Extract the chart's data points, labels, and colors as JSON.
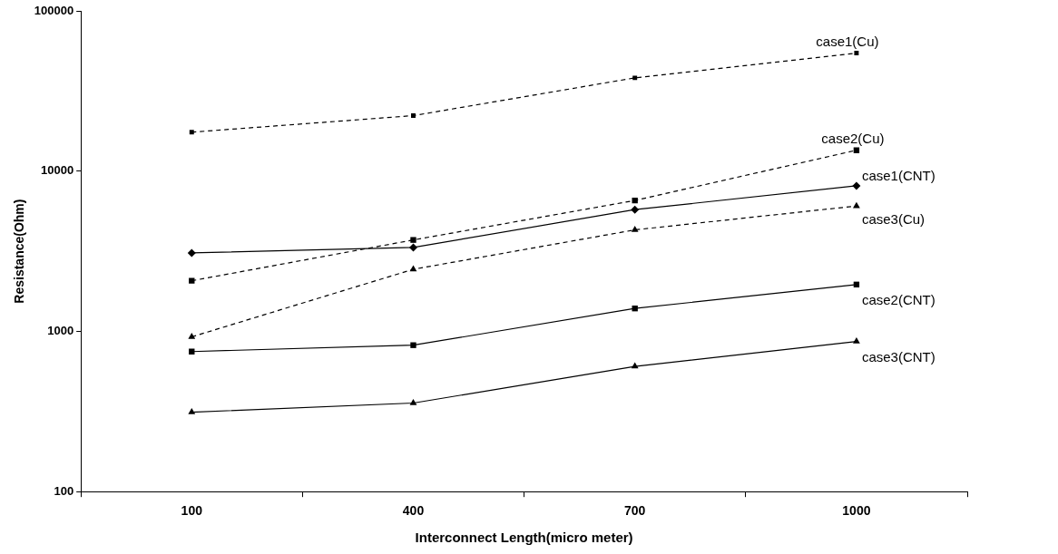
{
  "chart_data": {
    "type": "line",
    "xlabel": "Interconnect Length(micro meter)",
    "ylabel": "Resistance(Ohm)",
    "categories": [
      "100",
      "400",
      "700",
      "1000"
    ],
    "log": "y",
    "ylim": [
      100,
      100000
    ],
    "yticks": [
      100,
      1000,
      10000,
      100000
    ],
    "grid": false,
    "legend": false,
    "series": [
      {
        "name": "case1(Cu)",
        "color": "#000000",
        "marker": "square",
        "line_style": "dashed",
        "values": [
          17500,
          22200,
          38200,
          54500
        ]
      },
      {
        "name": "case2(Cu)",
        "color": "#000000",
        "marker": "square",
        "line_style": "dashed",
        "values": [
          2070,
          3720,
          6560,
          13500
        ]
      },
      {
        "name": "case1(CNT)",
        "color": "#000000",
        "marker": "diamond",
        "line_style": "solid",
        "values": [
          3090,
          3340,
          5750,
          8100
        ]
      },
      {
        "name": "case3(Cu)",
        "color": "#000000",
        "marker": "triangle",
        "line_style": "dashed",
        "values": [
          924,
          2440,
          4300,
          6060
        ]
      },
      {
        "name": "case2(CNT)",
        "color": "#000000",
        "marker": "square",
        "line_style": "solid",
        "values": [
          748,
          820,
          1390,
          1960
        ]
      },
      {
        "name": "case3(CNT)",
        "color": "#000000",
        "marker": "triangle",
        "line_style": "solid",
        "values": [
          313,
          357,
          605,
          865
        ]
      }
    ]
  }
}
